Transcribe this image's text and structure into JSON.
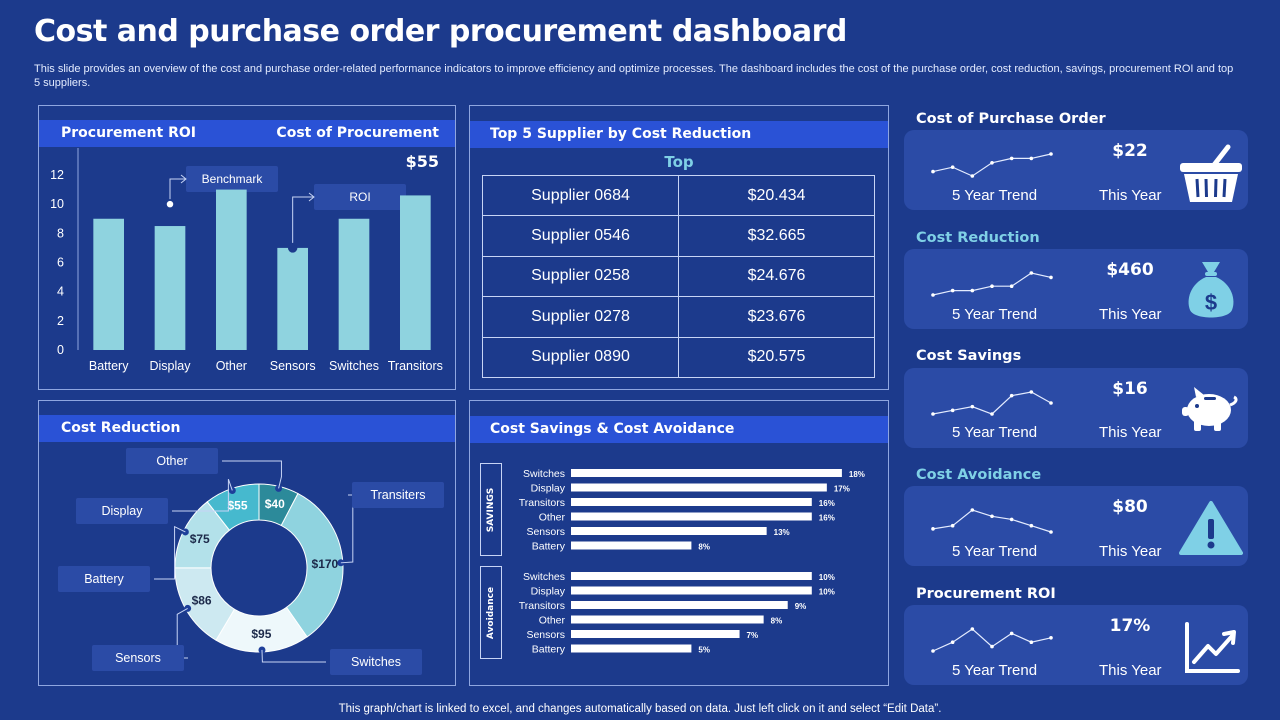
{
  "header": {
    "title": "Cost and purchase order procurement dashboard",
    "subtitle": "This slide provides an overview of the cost and purchase order-related performance indicators to improve efficiency and optimize processes. The dashboard includes the cost of the purchase order, cost reduction, savings, procurement ROI and top 5 suppliers."
  },
  "footer": "This graph/chart is linked to excel,  and changes automatically based on data. Just left click on it and select “Edit Data”.",
  "procurement_panel": {
    "title_left": "Procurement ROI",
    "title_right": "Cost of Procurement",
    "headline_value": "$55",
    "benchmark_label": "Benchmark",
    "roi_label": "ROI"
  },
  "supplier_panel": {
    "title": "Top 5 Supplier  by Cost Reduction",
    "subtitle": "Top",
    "rows": [
      {
        "name": "Supplier 0684",
        "value": "$20.434"
      },
      {
        "name": "Supplier 0546",
        "value": "$32.665"
      },
      {
        "name": "Supplier 0258",
        "value": "$24.676"
      },
      {
        "name": "Supplier 0278",
        "value": "$23.676"
      },
      {
        "name": "Supplier 0890",
        "value": "$20.575"
      }
    ]
  },
  "cost_reduction_panel": {
    "title": "Cost Reduction"
  },
  "savings_panel": {
    "title": "Cost Savings  & Cost Avoidance",
    "group1_label": "SAVINGS",
    "group2_label": "Avoidance"
  },
  "kpis": [
    {
      "title": "Cost of Purchase  Order",
      "value": "$22",
      "trend_label": "5 Year Trend",
      "year_label": "This Year",
      "icon": "basket-icon",
      "trend": [
        3,
        4,
        2,
        5,
        6,
        6,
        7
      ]
    },
    {
      "title": "Cost Reduction",
      "value": "$460",
      "trend_label": "5 Year Trend",
      "year_label": "This Year",
      "icon": "money-bag-icon",
      "trend": [
        2,
        3,
        3,
        4,
        4,
        7,
        6
      ]
    },
    {
      "title": "Cost Savings",
      "value": "$16",
      "trend_label": "5 Year Trend",
      "year_label": "This Year",
      "icon": "piggy-bank-icon",
      "trend": [
        2,
        3,
        4,
        2,
        7,
        8,
        5
      ]
    },
    {
      "title": "Cost Avoidance",
      "value": "$80",
      "trend_label": "5 Year Trend",
      "year_label": "This Year",
      "icon": "warning-icon",
      "trend": [
        2,
        3,
        8,
        6,
        5,
        3,
        1
      ]
    },
    {
      "title": "Procurement ROI",
      "value": "17%",
      "trend_label": "5 Year Trend",
      "year_label": "This Year",
      "icon": "growth-chart-icon",
      "trend": [
        1,
        3,
        6,
        2,
        5,
        3,
        4
      ]
    }
  ],
  "colors": {
    "background": "#1c3a8c",
    "header_bar": "#2a52d6",
    "card": "#2b4ba6",
    "bar": "#8fd3df",
    "accent_text": "#7fd0e6"
  },
  "chart_data": [
    {
      "id": "procurement_roi",
      "type": "bar",
      "title": "Procurement ROI",
      "categories": [
        "Battery",
        "Display",
        "Other",
        "Sensors",
        "Switches",
        "Transitors"
      ],
      "values": [
        9,
        8.5,
        11,
        7,
        9,
        10.6
      ],
      "ylim": [
        0,
        12
      ],
      "yticks": [
        0,
        2,
        4,
        6,
        8,
        10,
        12
      ],
      "markers": [
        {
          "label": "Benchmark",
          "category": "Display",
          "value": 10
        },
        {
          "label": "ROI",
          "category": "Sensors",
          "value": 7
        }
      ]
    },
    {
      "id": "cost_reduction",
      "type": "pie",
      "title": "Cost Reduction",
      "donut": true,
      "slices": [
        {
          "name": "Other",
          "value": 40,
          "label": "$40",
          "color": "#2c8a9a"
        },
        {
          "name": "Transiters",
          "value": 170,
          "label": "$170",
          "color": "#8fd3df"
        },
        {
          "name": "Switches",
          "value": 95,
          "label": "$95",
          "color": "#eef8fb"
        },
        {
          "name": "Sensors",
          "value": 86,
          "label": "$86",
          "color": "#cde9f1"
        },
        {
          "name": "Battery",
          "value": 75,
          "label": "$75",
          "color": "#b3e1ea"
        },
        {
          "name": "Display",
          "value": 55,
          "label": "$55",
          "color": "#46b9ce"
        }
      ]
    },
    {
      "id": "cost_savings",
      "type": "bar",
      "orientation": "horizontal",
      "title": "Cost Savings",
      "categories": [
        "Switches",
        "Display",
        "Transitors",
        "Other",
        "Sensors",
        "Battery"
      ],
      "values": [
        18,
        17,
        16,
        16,
        13,
        8
      ],
      "labels": [
        "18%",
        "17%",
        "16%",
        "16%",
        "13%",
        "8%"
      ],
      "xlim": [
        0,
        20
      ]
    },
    {
      "id": "cost_avoidance",
      "type": "bar",
      "orientation": "horizontal",
      "title": "Cost Avoidance",
      "categories": [
        "Switches",
        "Display",
        "Transitors",
        "Other",
        "Sensors",
        "Battery"
      ],
      "values": [
        10,
        10,
        9,
        8,
        7,
        5
      ],
      "labels": [
        "10%",
        "10%",
        "9%",
        "8%",
        "7%",
        "5%"
      ],
      "xlim": [
        0,
        12.5
      ]
    }
  ]
}
